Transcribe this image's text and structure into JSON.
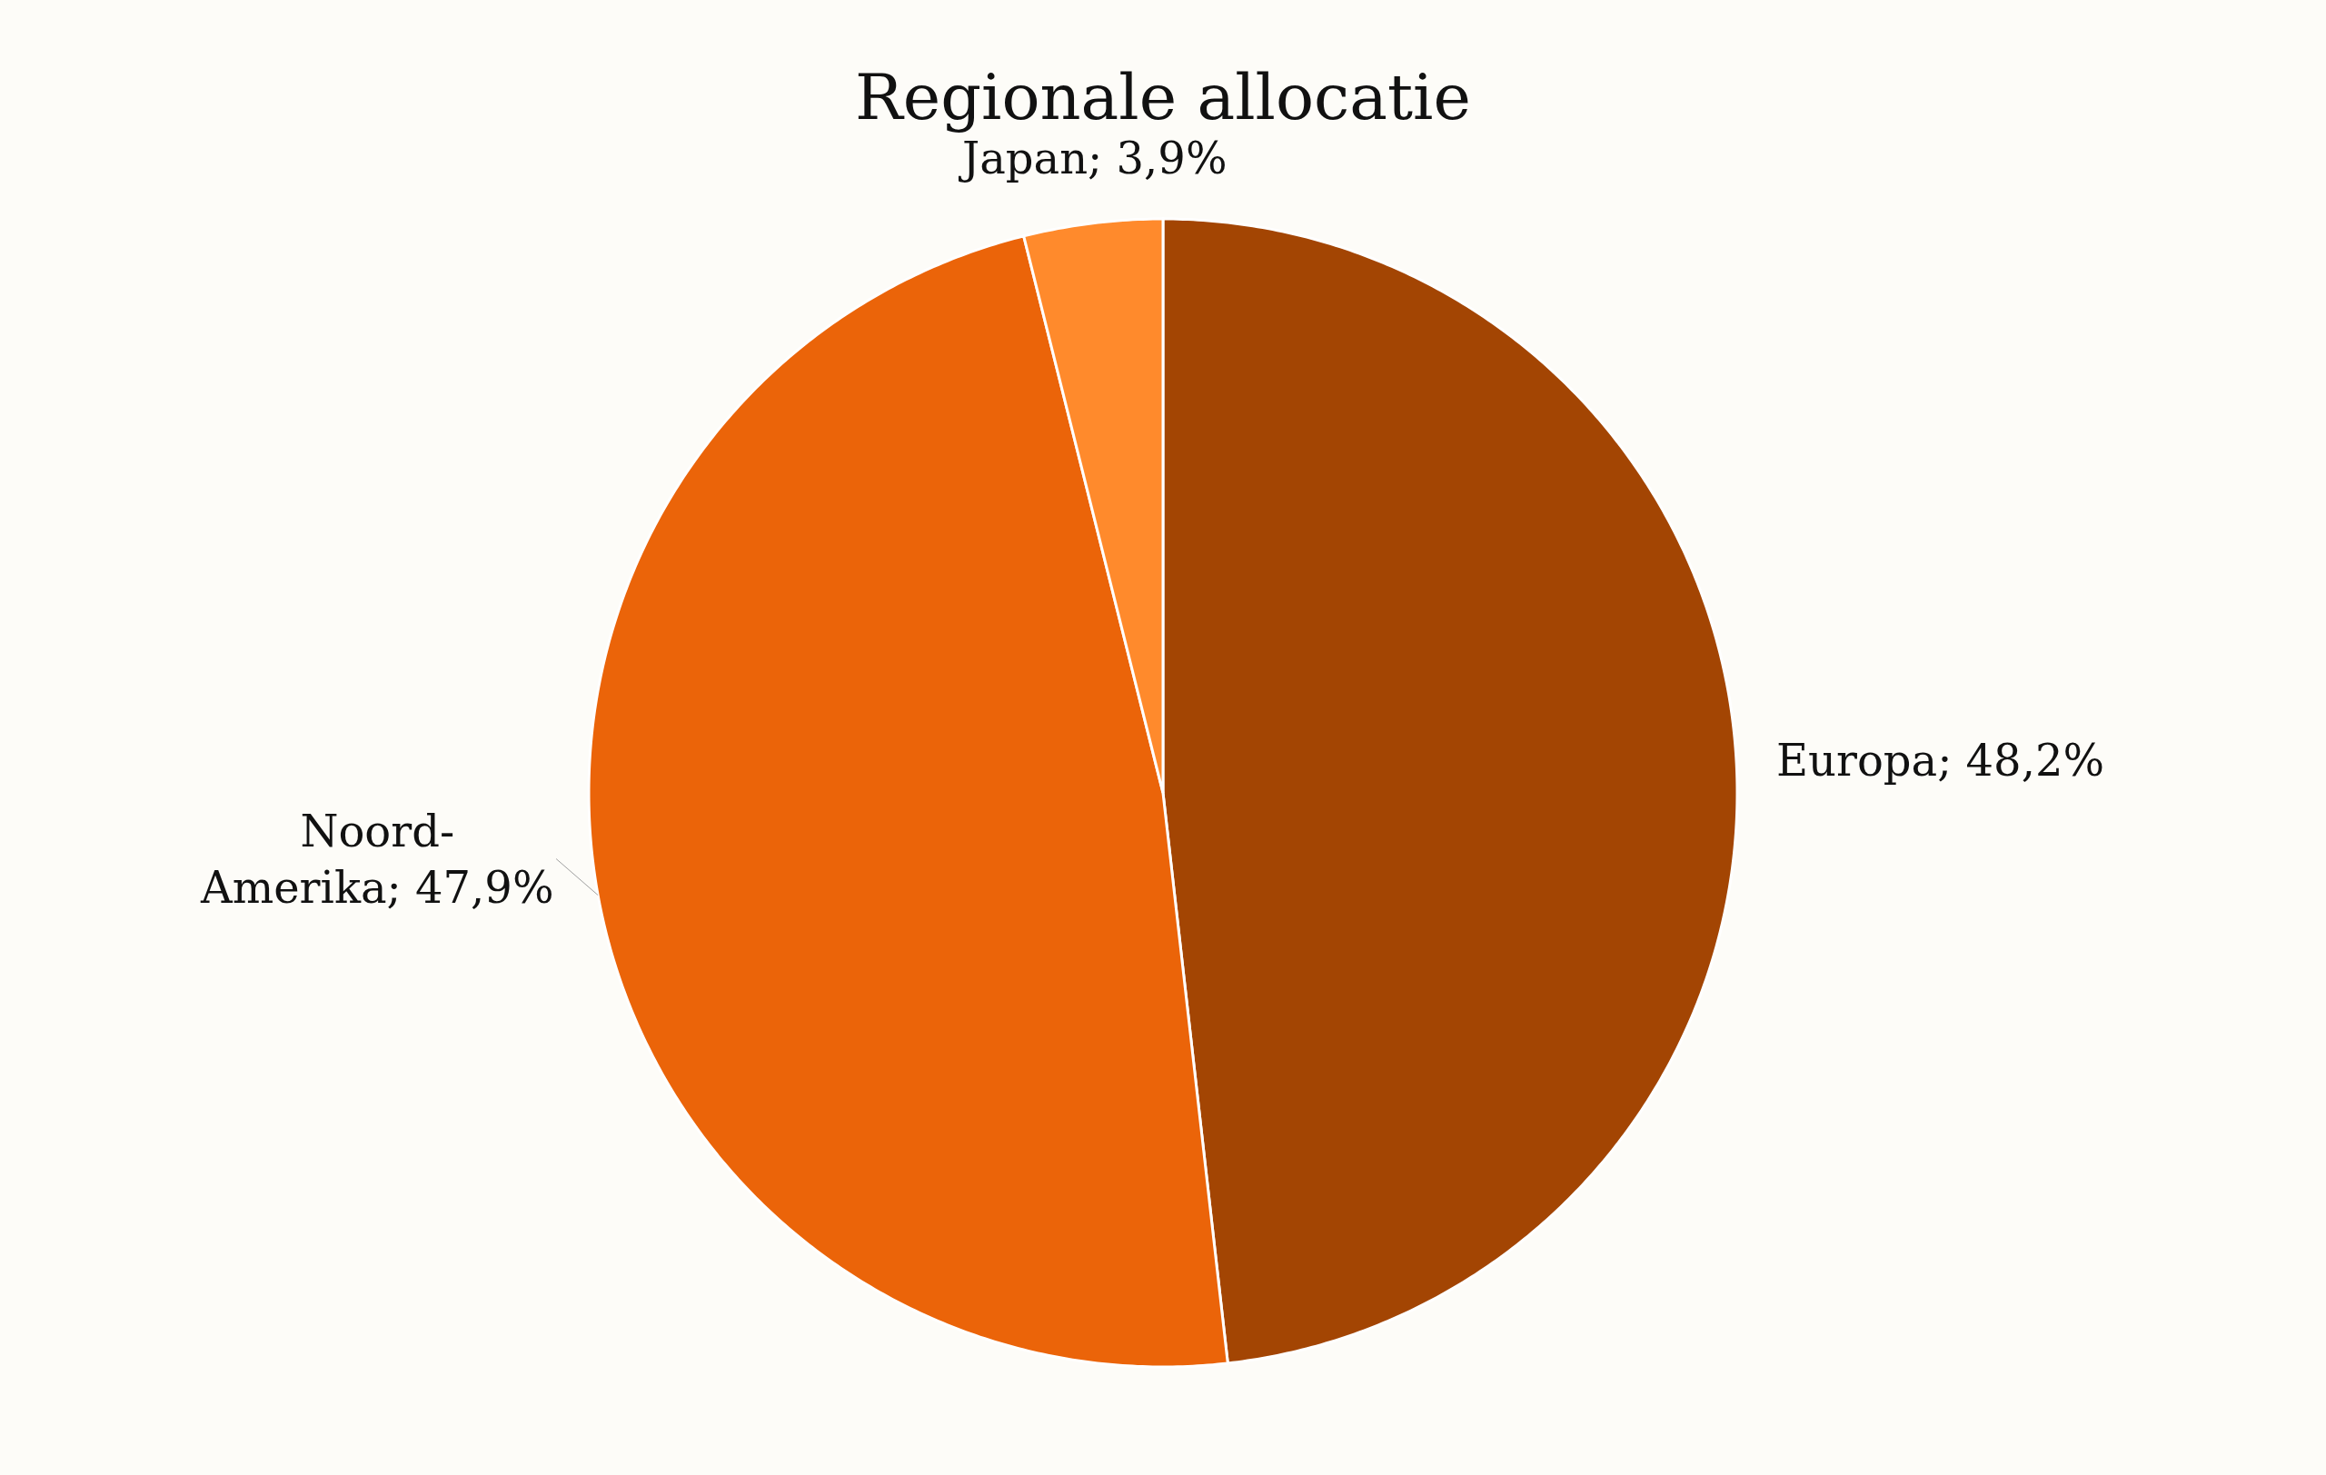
{
  "chart_data": {
    "type": "pie",
    "title": "Regionale allocatie",
    "categories": [
      "Europa",
      "Noord-Amerika",
      "Japan"
    ],
    "values": [
      48.2,
      47.9,
      3.9
    ],
    "value_labels": [
      "48,2%",
      "47,9%",
      "3,9%"
    ],
    "colors": [
      "#a34503",
      "#eb6409",
      "#ff8a2c"
    ],
    "legend": false
  }
}
